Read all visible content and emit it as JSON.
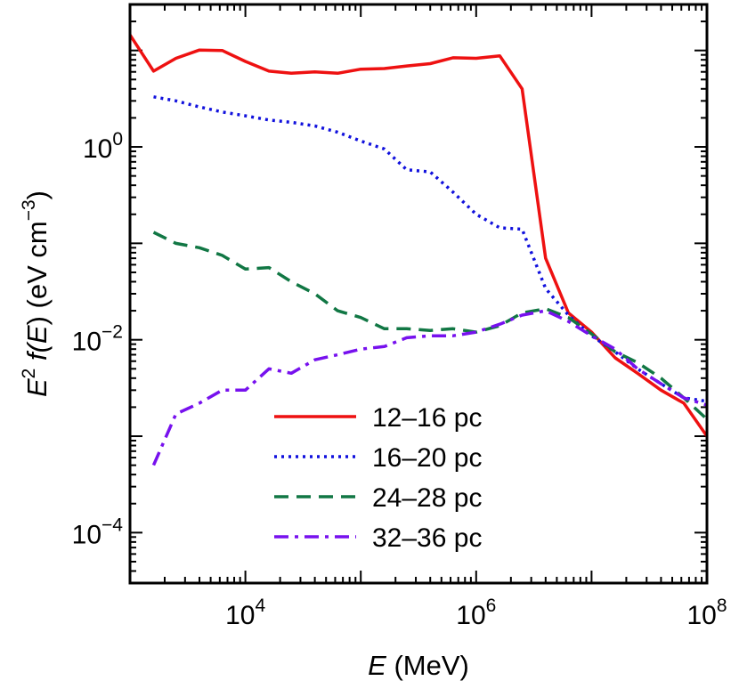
{
  "chart_data": {
    "type": "line",
    "xscale": "log",
    "yscale": "log",
    "xlim": [
      1000,
      100000000
    ],
    "ylim": [
      3e-05,
      30
    ],
    "grid": false,
    "legend_position": "bottom-center",
    "xlabel": {
      "var": "E",
      "unit": " (MeV)"
    },
    "ylabel": {
      "base": "E",
      "sup1": "2",
      "fn": " f(",
      "var": "E",
      "mid": ") (eV cm",
      "sup2": "−3",
      "end": ")"
    },
    "x_tick_labels": [
      {
        "value": 10000,
        "base": "10",
        "exp": "4"
      },
      {
        "value": 1000000,
        "base": "10",
        "exp": "6"
      },
      {
        "value": 100000000,
        "base": "10",
        "exp": "8"
      }
    ],
    "y_tick_labels": [
      {
        "value": 1,
        "base": "10",
        "exp": "0"
      },
      {
        "value": 0.01,
        "base": "10",
        "exp": "−2"
      },
      {
        "value": 0.0001,
        "base": "10",
        "exp": "−4"
      }
    ],
    "series": [
      {
        "name": "12–16 pc",
        "color": "#ee1111",
        "dash": "solid",
        "x": [
          1000,
          1600,
          2500,
          4000,
          6300,
          10000,
          16000,
          25000,
          40000,
          63000,
          100000,
          160000,
          250000,
          400000,
          630000,
          1000000,
          1600000,
          2500000,
          4000000,
          6300000,
          10000000,
          16000000,
          25000000,
          40000000,
          63000000,
          100000000
        ],
        "y": [
          14.5,
          6.1,
          8.3,
          10.1,
          10.0,
          7.7,
          6.1,
          5.8,
          6.0,
          5.8,
          6.4,
          6.5,
          6.9,
          7.3,
          8.4,
          8.3,
          8.8,
          4.0,
          0.07,
          0.019,
          0.012,
          0.0065,
          0.0045,
          0.003,
          0.0022,
          0.001
        ]
      },
      {
        "name": "16–20 pc",
        "color": "#1111dd",
        "dash": "dotted",
        "x": [
          1600,
          2500,
          4000,
          6300,
          10000,
          16000,
          25000,
          40000,
          63000,
          100000,
          160000,
          250000,
          400000,
          630000,
          1000000,
          1600000,
          2500000,
          4000000,
          6300000,
          10000000,
          16000000,
          25000000,
          40000000,
          63000000,
          100000000
        ],
        "y": [
          3.3,
          3.0,
          2.6,
          2.3,
          2.1,
          1.9,
          1.8,
          1.65,
          1.42,
          1.15,
          0.95,
          0.58,
          0.55,
          0.34,
          0.2,
          0.145,
          0.14,
          0.034,
          0.018,
          0.011,
          0.0075,
          0.005,
          0.0035,
          0.0025,
          0.0023
        ]
      },
      {
        "name": "24–28 pc",
        "color": "#117744",
        "dash": "dashed",
        "x": [
          1600,
          2500,
          4000,
          6300,
          10000,
          16000,
          25000,
          40000,
          63000,
          100000,
          160000,
          250000,
          400000,
          630000,
          1000000,
          1600000,
          2500000,
          4000000,
          6300000,
          10000000,
          16000000,
          25000000,
          40000000,
          63000000,
          100000000
        ],
        "y": [
          0.13,
          0.1,
          0.09,
          0.075,
          0.054,
          0.056,
          0.04,
          0.03,
          0.02,
          0.017,
          0.013,
          0.013,
          0.0125,
          0.013,
          0.012,
          0.014,
          0.019,
          0.021,
          0.017,
          0.0115,
          0.0075,
          0.0058,
          0.004,
          0.0025,
          0.0015
        ]
      },
      {
        "name": "32–36 pc",
        "color": "#7711ee",
        "dash": "dashdot",
        "x": [
          1600,
          2500,
          4000,
          6300,
          10000,
          16000,
          25000,
          40000,
          63000,
          100000,
          160000,
          250000,
          400000,
          630000,
          1000000,
          1600000,
          2500000,
          4000000,
          6300000,
          10000000,
          16000000,
          25000000,
          40000000,
          63000000,
          100000000
        ],
        "y": [
          0.0005,
          0.0017,
          0.0022,
          0.003,
          0.003,
          0.005,
          0.0045,
          0.0062,
          0.007,
          0.008,
          0.0085,
          0.0105,
          0.011,
          0.011,
          0.012,
          0.0145,
          0.018,
          0.02,
          0.0155,
          0.011,
          0.008,
          0.005,
          0.0035,
          0.0025,
          0.0021
        ]
      }
    ]
  }
}
